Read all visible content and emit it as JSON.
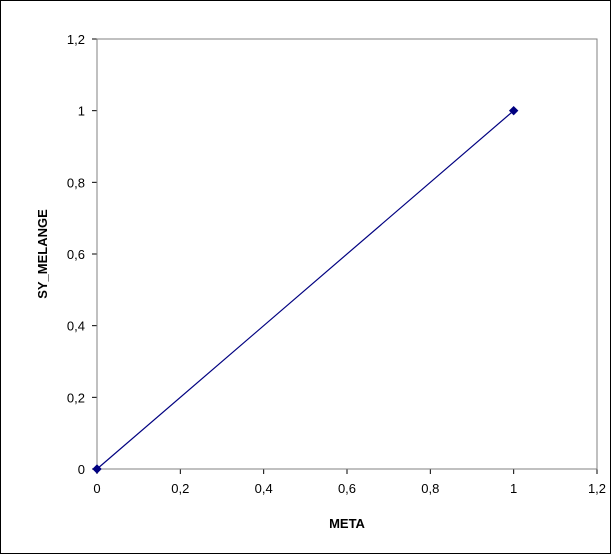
{
  "chart_data": {
    "type": "scatter",
    "mode": "lines+markers",
    "title": "",
    "xlabel": "META",
    "ylabel": "SY_MELANGE",
    "xlim": [
      0,
      1.2
    ],
    "ylim": [
      0,
      1.2
    ],
    "x_ticks": [
      "0",
      "0,2",
      "0,4",
      "0,6",
      "0,8",
      "1",
      "1,2"
    ],
    "y_ticks": [
      "0",
      "0,2",
      "0,4",
      "0,6",
      "0,8",
      "1",
      "1,2"
    ],
    "series": [
      {
        "x": [
          0,
          1
        ],
        "y": [
          0,
          1
        ],
        "color": "#000080",
        "marker": "diamond"
      }
    ],
    "grid": false,
    "legend": "none"
  }
}
